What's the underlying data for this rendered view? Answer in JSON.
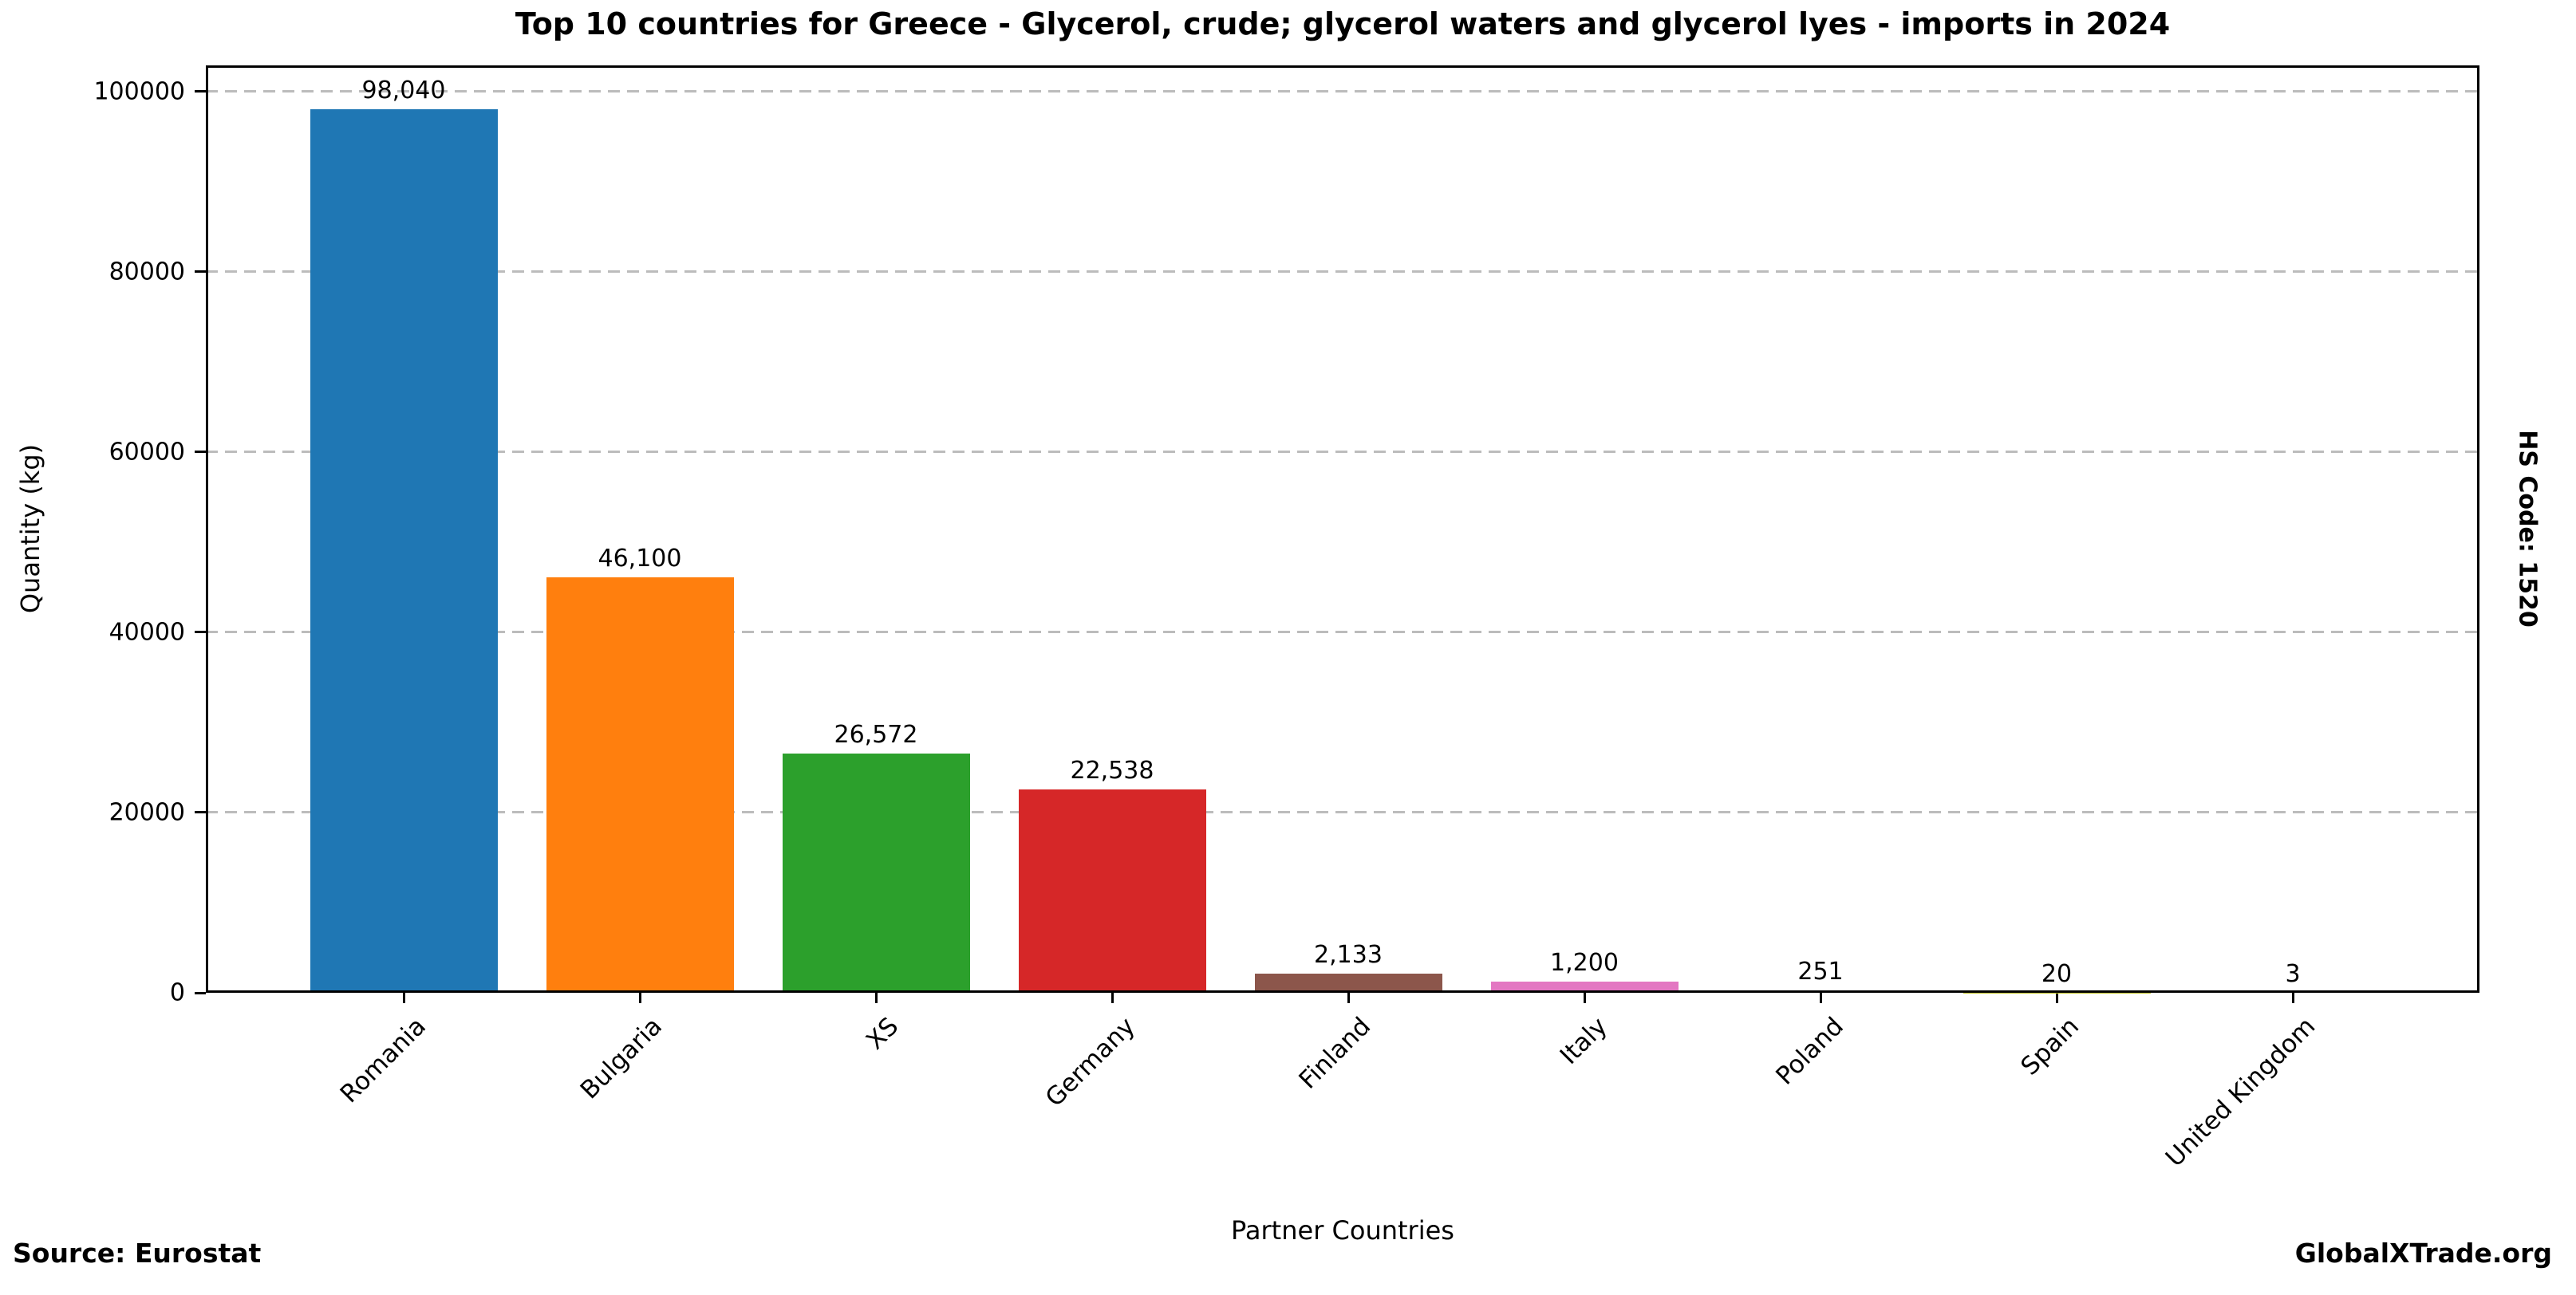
{
  "chart_data": {
    "type": "bar",
    "title": "Top 10 countries for Greece - Glycerol, crude; glycerol waters and glycerol lyes - imports in 2024",
    "xlabel": "Partner Countries",
    "ylabel": "Quantity (kg)",
    "categories": [
      "Romania",
      "Bulgaria",
      "XS",
      "Germany",
      "Finland",
      "Italy",
      "Poland",
      "Spain",
      "United Kingdom"
    ],
    "values": [
      98040,
      46100,
      26572,
      22538,
      2133,
      1200,
      251,
      20,
      3
    ],
    "value_labels": [
      "98,040",
      "46,100",
      "26,572",
      "22,538",
      "2,133",
      "1,200",
      "251",
      "20",
      "3"
    ],
    "bar_colors": [
      "#1f77b4",
      "#ff7f0e",
      "#2ca02c",
      "#d62728",
      "#8c564b",
      "#e377c2",
      "#7f7f7f",
      "#bcbd22",
      "#17becf"
    ],
    "ylim": [
      0,
      100000
    ],
    "yticks": [
      0,
      20000,
      40000,
      60000,
      80000,
      100000
    ],
    "ytick_labels": [
      "0",
      "20000",
      "40000",
      "60000",
      "80000",
      "100000"
    ],
    "grid": {
      "axis": "y",
      "style": "dashed",
      "color": "#bcbcbc"
    },
    "legend_position": "none"
  },
  "footer": {
    "source": "Source: Eurostat",
    "brand": "GlobalXTrade.org"
  },
  "side_note": "HS Code: 1520"
}
